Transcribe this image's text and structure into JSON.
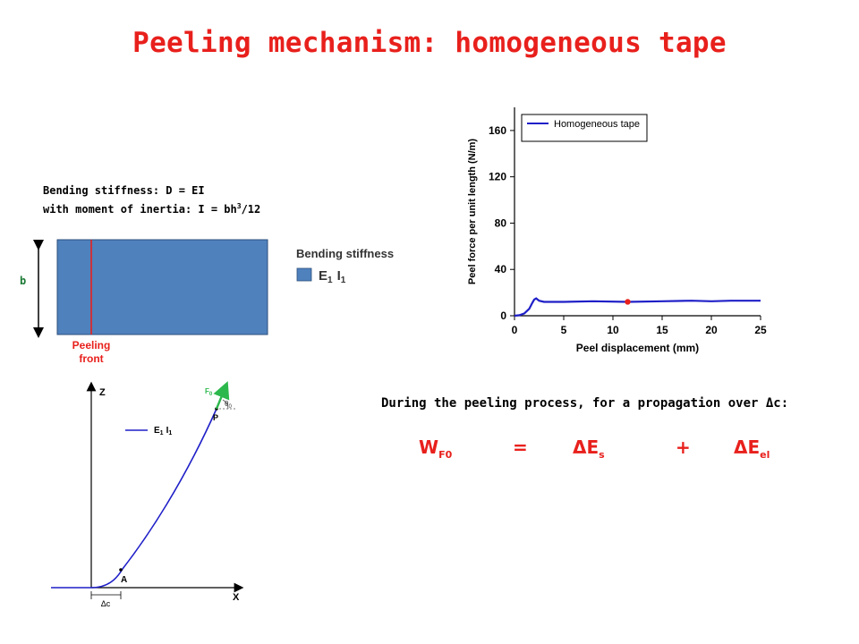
{
  "title": "Peeling mechanism: homogeneous tape",
  "bending": {
    "line1": "Bending stiffness: D = EI",
    "line2_pre": "with moment of inertia: I = bh",
    "line2_sup": "3",
    "line2_post": "/12",
    "width_label": "b",
    "front_line1": "Peeling",
    "front_line2": "front",
    "legend_title": "Bending stiffness",
    "legend_e": "E",
    "legend_e_sub": "1",
    "legend_i": "I",
    "legend_i_sub": "1",
    "colors": {
      "tape": "#4f81bd",
      "front": "#e8201c"
    }
  },
  "chart_data": {
    "type": "line",
    "xlabel": "Peel displacement (mm)",
    "ylabel": "Peel force per unit length (N/m)",
    "xlim": [
      0,
      25
    ],
    "ylim": [
      0,
      180
    ],
    "xticks": [
      "0",
      "5",
      "10",
      "15",
      "20",
      "25"
    ],
    "yticks": [
      "0",
      "40",
      "80",
      "120",
      "160"
    ],
    "grid": false,
    "legend_position": "top-left",
    "series": [
      {
        "name": "Homogeneous tape",
        "color": "#1f1fc8",
        "x": [
          0,
          0.5,
          1.0,
          1.5,
          1.8,
          2.0,
          2.2,
          2.5,
          3,
          5,
          8,
          11.5,
          15,
          18,
          20,
          22,
          25
        ],
        "y": [
          0,
          0.5,
          2,
          6,
          11,
          14,
          15,
          13,
          12,
          12,
          12.5,
          12,
          12.5,
          13,
          12.5,
          13,
          13
        ]
      }
    ],
    "marker": {
      "x": 11.5,
      "y": 12,
      "color": "#e8201c"
    }
  },
  "diagram": {
    "z_label": "Z",
    "x_label": "X",
    "legend_e": "E",
    "legend_e_sub": "1",
    "legend_i": "I",
    "legend_i_sub": "1",
    "point_p": "P",
    "point_a": "A",
    "delta_c": "Δc",
    "force": "F",
    "force_sub": "0",
    "theta": "θ",
    "theta_sub": "0",
    "curve_color": "#1f1fc8",
    "arrow_color": "#2db84d"
  },
  "text": {
    "process": "During the peeling process, for a propagation over Δc:"
  },
  "equation": {
    "w": "W",
    "w_sub": "F0",
    "eq": "=",
    "es": "ΔE",
    "es_sub": "s",
    "plus": "+",
    "eel": "ΔE",
    "eel_sub": "el"
  }
}
